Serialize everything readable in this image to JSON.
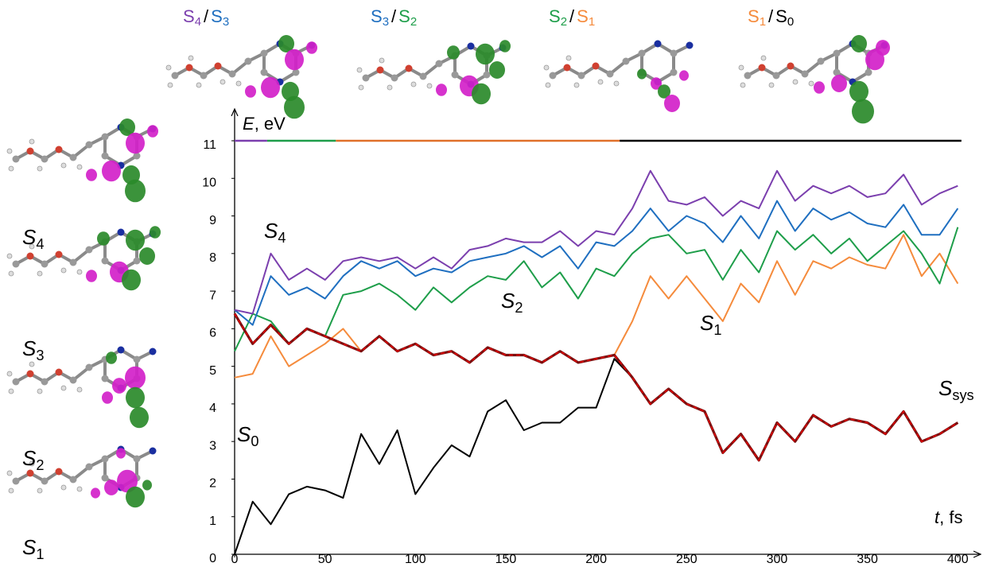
{
  "chart_data": {
    "type": "line",
    "y_label": {
      "symbol": "E",
      "unit": ", eV"
    },
    "x_label": {
      "symbol": "t",
      "unit": ", fs"
    },
    "xlim": [
      0,
      410
    ],
    "ylim": [
      0,
      11
    ],
    "xticks": [
      0,
      50,
      100,
      150,
      200,
      250,
      300,
      350,
      400
    ],
    "yticks": [
      0,
      1,
      2,
      3,
      4,
      5,
      6,
      7,
      8,
      9,
      10,
      11
    ],
    "x": [
      0,
      10,
      20,
      30,
      40,
      50,
      60,
      70,
      80,
      90,
      100,
      110,
      120,
      130,
      140,
      150,
      160,
      170,
      180,
      190,
      200,
      210,
      220,
      230,
      240,
      250,
      260,
      270,
      280,
      290,
      300,
      310,
      320,
      330,
      340,
      350,
      360,
      370,
      380,
      390,
      400
    ],
    "series": [
      {
        "name": "S",
        "subscript": "0",
        "color": "#000000",
        "values": [
          0,
          1.4,
          0.8,
          1.6,
          1.8,
          1.7,
          1.5,
          3.2,
          2.4,
          3.3,
          1.6,
          2.3,
          2.9,
          2.6,
          3.8,
          4.1,
          3.3,
          3.5,
          3.5,
          3.9,
          3.9,
          5.2,
          4.7,
          4.0,
          4.4,
          4.0,
          3.8,
          2.7,
          3.2,
          2.5,
          3.5,
          3.0,
          3.7,
          3.4,
          3.6,
          3.5,
          3.2,
          3.8,
          3.0,
          3.2,
          3.5
        ]
      },
      {
        "name": "S",
        "subscript": "1",
        "color": "#f58b3c",
        "values": [
          4.7,
          4.8,
          5.8,
          5.0,
          5.3,
          5.6,
          6.0,
          5.4,
          5.8,
          5.4,
          5.6,
          5.3,
          5.4,
          5.1,
          5.5,
          5.3,
          5.3,
          5.1,
          5.4,
          5.1,
          5.2,
          5.3,
          6.2,
          7.4,
          6.8,
          7.4,
          6.8,
          6.2,
          7.2,
          6.7,
          7.8,
          6.9,
          7.8,
          7.6,
          7.9,
          7.7,
          7.6,
          8.5,
          7.4,
          8.0,
          7.2
        ]
      },
      {
        "name": "S",
        "subscript": "2",
        "color": "#1e9e4a",
        "values": [
          5.4,
          6.4,
          6.2,
          5.6,
          6.0,
          5.8,
          6.9,
          7.0,
          7.2,
          6.9,
          6.5,
          7.1,
          6.7,
          7.1,
          7.4,
          7.3,
          7.8,
          7.1,
          7.5,
          6.8,
          7.6,
          7.4,
          8.0,
          8.4,
          8.5,
          8.0,
          8.1,
          7.3,
          8.1,
          7.5,
          8.6,
          8.1,
          8.5,
          8.0,
          8.4,
          7.8,
          8.2,
          8.6,
          8.0,
          7.2,
          8.7
        ]
      },
      {
        "name": "S",
        "subscript": "3",
        "color": "#1f6fc0",
        "values": [
          6.5,
          6.1,
          7.4,
          6.9,
          7.1,
          6.8,
          7.4,
          7.8,
          7.6,
          7.8,
          7.4,
          7.6,
          7.5,
          7.8,
          7.9,
          8.0,
          8.2,
          7.9,
          8.2,
          7.6,
          8.3,
          8.2,
          8.6,
          9.2,
          8.6,
          9.0,
          8.8,
          8.3,
          9.0,
          8.4,
          9.4,
          8.6,
          9.2,
          8.9,
          9.1,
          8.8,
          8.7,
          9.3,
          8.5,
          8.5,
          9.2
        ]
      },
      {
        "name": "S",
        "subscript": "4",
        "color": "#7b3fae",
        "values": [
          6.5,
          6.4,
          8.0,
          7.3,
          7.6,
          7.3,
          7.8,
          7.9,
          7.8,
          7.9,
          7.6,
          7.9,
          7.6,
          8.1,
          8.2,
          8.4,
          8.3,
          8.3,
          8.6,
          8.2,
          8.6,
          8.5,
          9.2,
          10.2,
          9.4,
          9.3,
          9.5,
          9.0,
          9.4,
          9.2,
          10.2,
          9.4,
          9.8,
          9.6,
          9.8,
          9.5,
          9.6,
          10.1,
          9.3,
          9.6,
          9.8
        ]
      },
      {
        "name": "S",
        "subscript": "sys",
        "color": "#e00000",
        "values": [
          6.4,
          5.6,
          6.1,
          5.6,
          6.0,
          5.8,
          5.6,
          5.4,
          5.8,
          5.4,
          5.6,
          5.3,
          5.4,
          5.1,
          5.5,
          5.3,
          5.3,
          5.1,
          5.4,
          5.1,
          5.2,
          5.3,
          4.7,
          4.0,
          4.4,
          4.0,
          3.8,
          2.7,
          3.2,
          2.5,
          3.5,
          3.0,
          3.7,
          3.4,
          3.6,
          3.5,
          3.2,
          3.8,
          3.0,
          3.2,
          3.5
        ]
      }
    ],
    "state_bar": {
      "level": 11,
      "segments": [
        {
          "start": 0,
          "end": 18,
          "color": "#7b3fae"
        },
        {
          "start": 18,
          "end": 56,
          "color": "#1e9e4a"
        },
        {
          "start": 56,
          "end": 213,
          "color": "#e0702a"
        },
        {
          "start": 213,
          "end": 402,
          "color": "#000000"
        }
      ]
    },
    "transitions": [
      {
        "from": {
          "name": "S",
          "subscript": "4",
          "color": "#7b3fae"
        },
        "sep": "/",
        "to": {
          "name": "S",
          "subscript": "3",
          "color": "#1f6fc0"
        }
      },
      {
        "from": {
          "name": "S",
          "subscript": "3",
          "color": "#1f6fc0"
        },
        "sep": "/",
        "to": {
          "name": "S",
          "subscript": "2",
          "color": "#1e9e4a"
        }
      },
      {
        "from": {
          "name": "S",
          "subscript": "2",
          "color": "#1e9e4a"
        },
        "sep": "/",
        "to": {
          "name": "S",
          "subscript": "1",
          "color": "#f58b3c"
        }
      },
      {
        "from": {
          "name": "S",
          "subscript": "1",
          "color": "#f58b3c"
        },
        "sep": "/",
        "to": {
          "name": "S",
          "subscript": "0",
          "color": "#000000"
        }
      }
    ],
    "orbital_labels": [
      {
        "name": "S",
        "subscript": "4",
        "color": "#7b3fae"
      },
      {
        "name": "S",
        "subscript": "3",
        "color": "#1f6fc0"
      },
      {
        "name": "S",
        "subscript": "2",
        "color": "#1e9e4a"
      },
      {
        "name": "S",
        "subscript": "1",
        "color": "#f58b3c"
      }
    ]
  }
}
